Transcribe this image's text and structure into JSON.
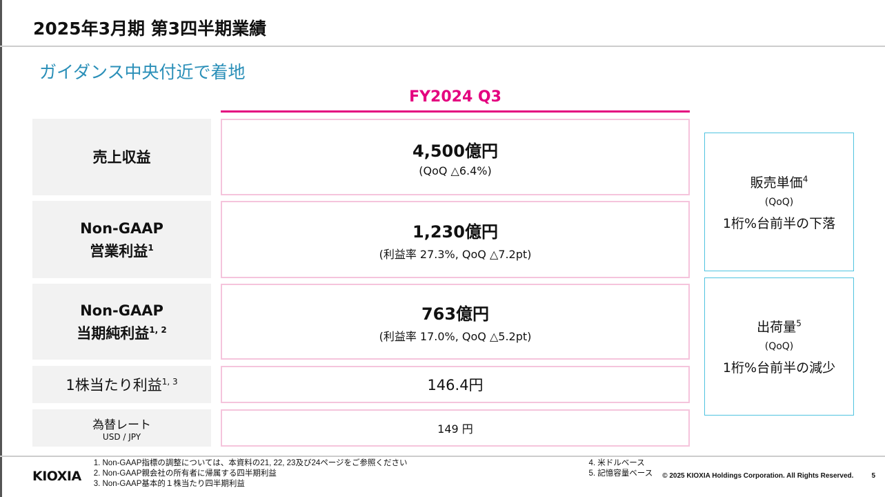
{
  "title": "2025年3月期 第3四半期業績",
  "subtitle": "ガイダンス中央付近で着地",
  "period": "FY2024 Q3",
  "rows": [
    {
      "label": "売上収益",
      "value": "4,500億円",
      "detail": "(QoQ △6.4%)"
    },
    {
      "label1": "Non-GAAP",
      "label2": "営業利益",
      "sup": "1",
      "value": "1,230億円",
      "detail": "(利益率 27.3%, QoQ △7.2pt)"
    },
    {
      "label1": "Non-GAAP",
      "label2": "当期純利益",
      "sup": "1, 2",
      "value": "763億円",
      "detail": "(利益率 17.0%, QoQ △5.2pt)"
    },
    {
      "label": "1株当たり利益",
      "sup": "1, 3",
      "value": "146.4円"
    },
    {
      "label": "為替レート",
      "sublabel": "USD / JPY",
      "value": "149 円"
    }
  ],
  "side": [
    {
      "label": "販売単価",
      "sup": "4",
      "qoq": "(QoQ)",
      "text": "1桁%台前半の下落"
    },
    {
      "label": "出荷量",
      "sup": "5",
      "qoq": "(QoQ)",
      "text": "1桁%台前半の減少"
    }
  ],
  "footer": {
    "logo": "KIOXIA",
    "notes": [
      "1. Non-GAAP指標の調整については、本資料の21, 22, 23及び24ページをご参照ください",
      "2. Non-GAAP親会社の所有者に帰属する四半期利益",
      "3. Non-GAAP基本的１株当たり四半期利益"
    ],
    "notes2": [
      "4. 米ドルベース",
      "5. 記憶容量ベース"
    ],
    "copyright": "© 2025 KIOXIA Holdings Corporation. All Rights Reserved.",
    "page": "5"
  },
  "colors": {
    "accent": "#e4007f",
    "teal": "#2a8fb8",
    "side_border": "#4fc3e0"
  }
}
